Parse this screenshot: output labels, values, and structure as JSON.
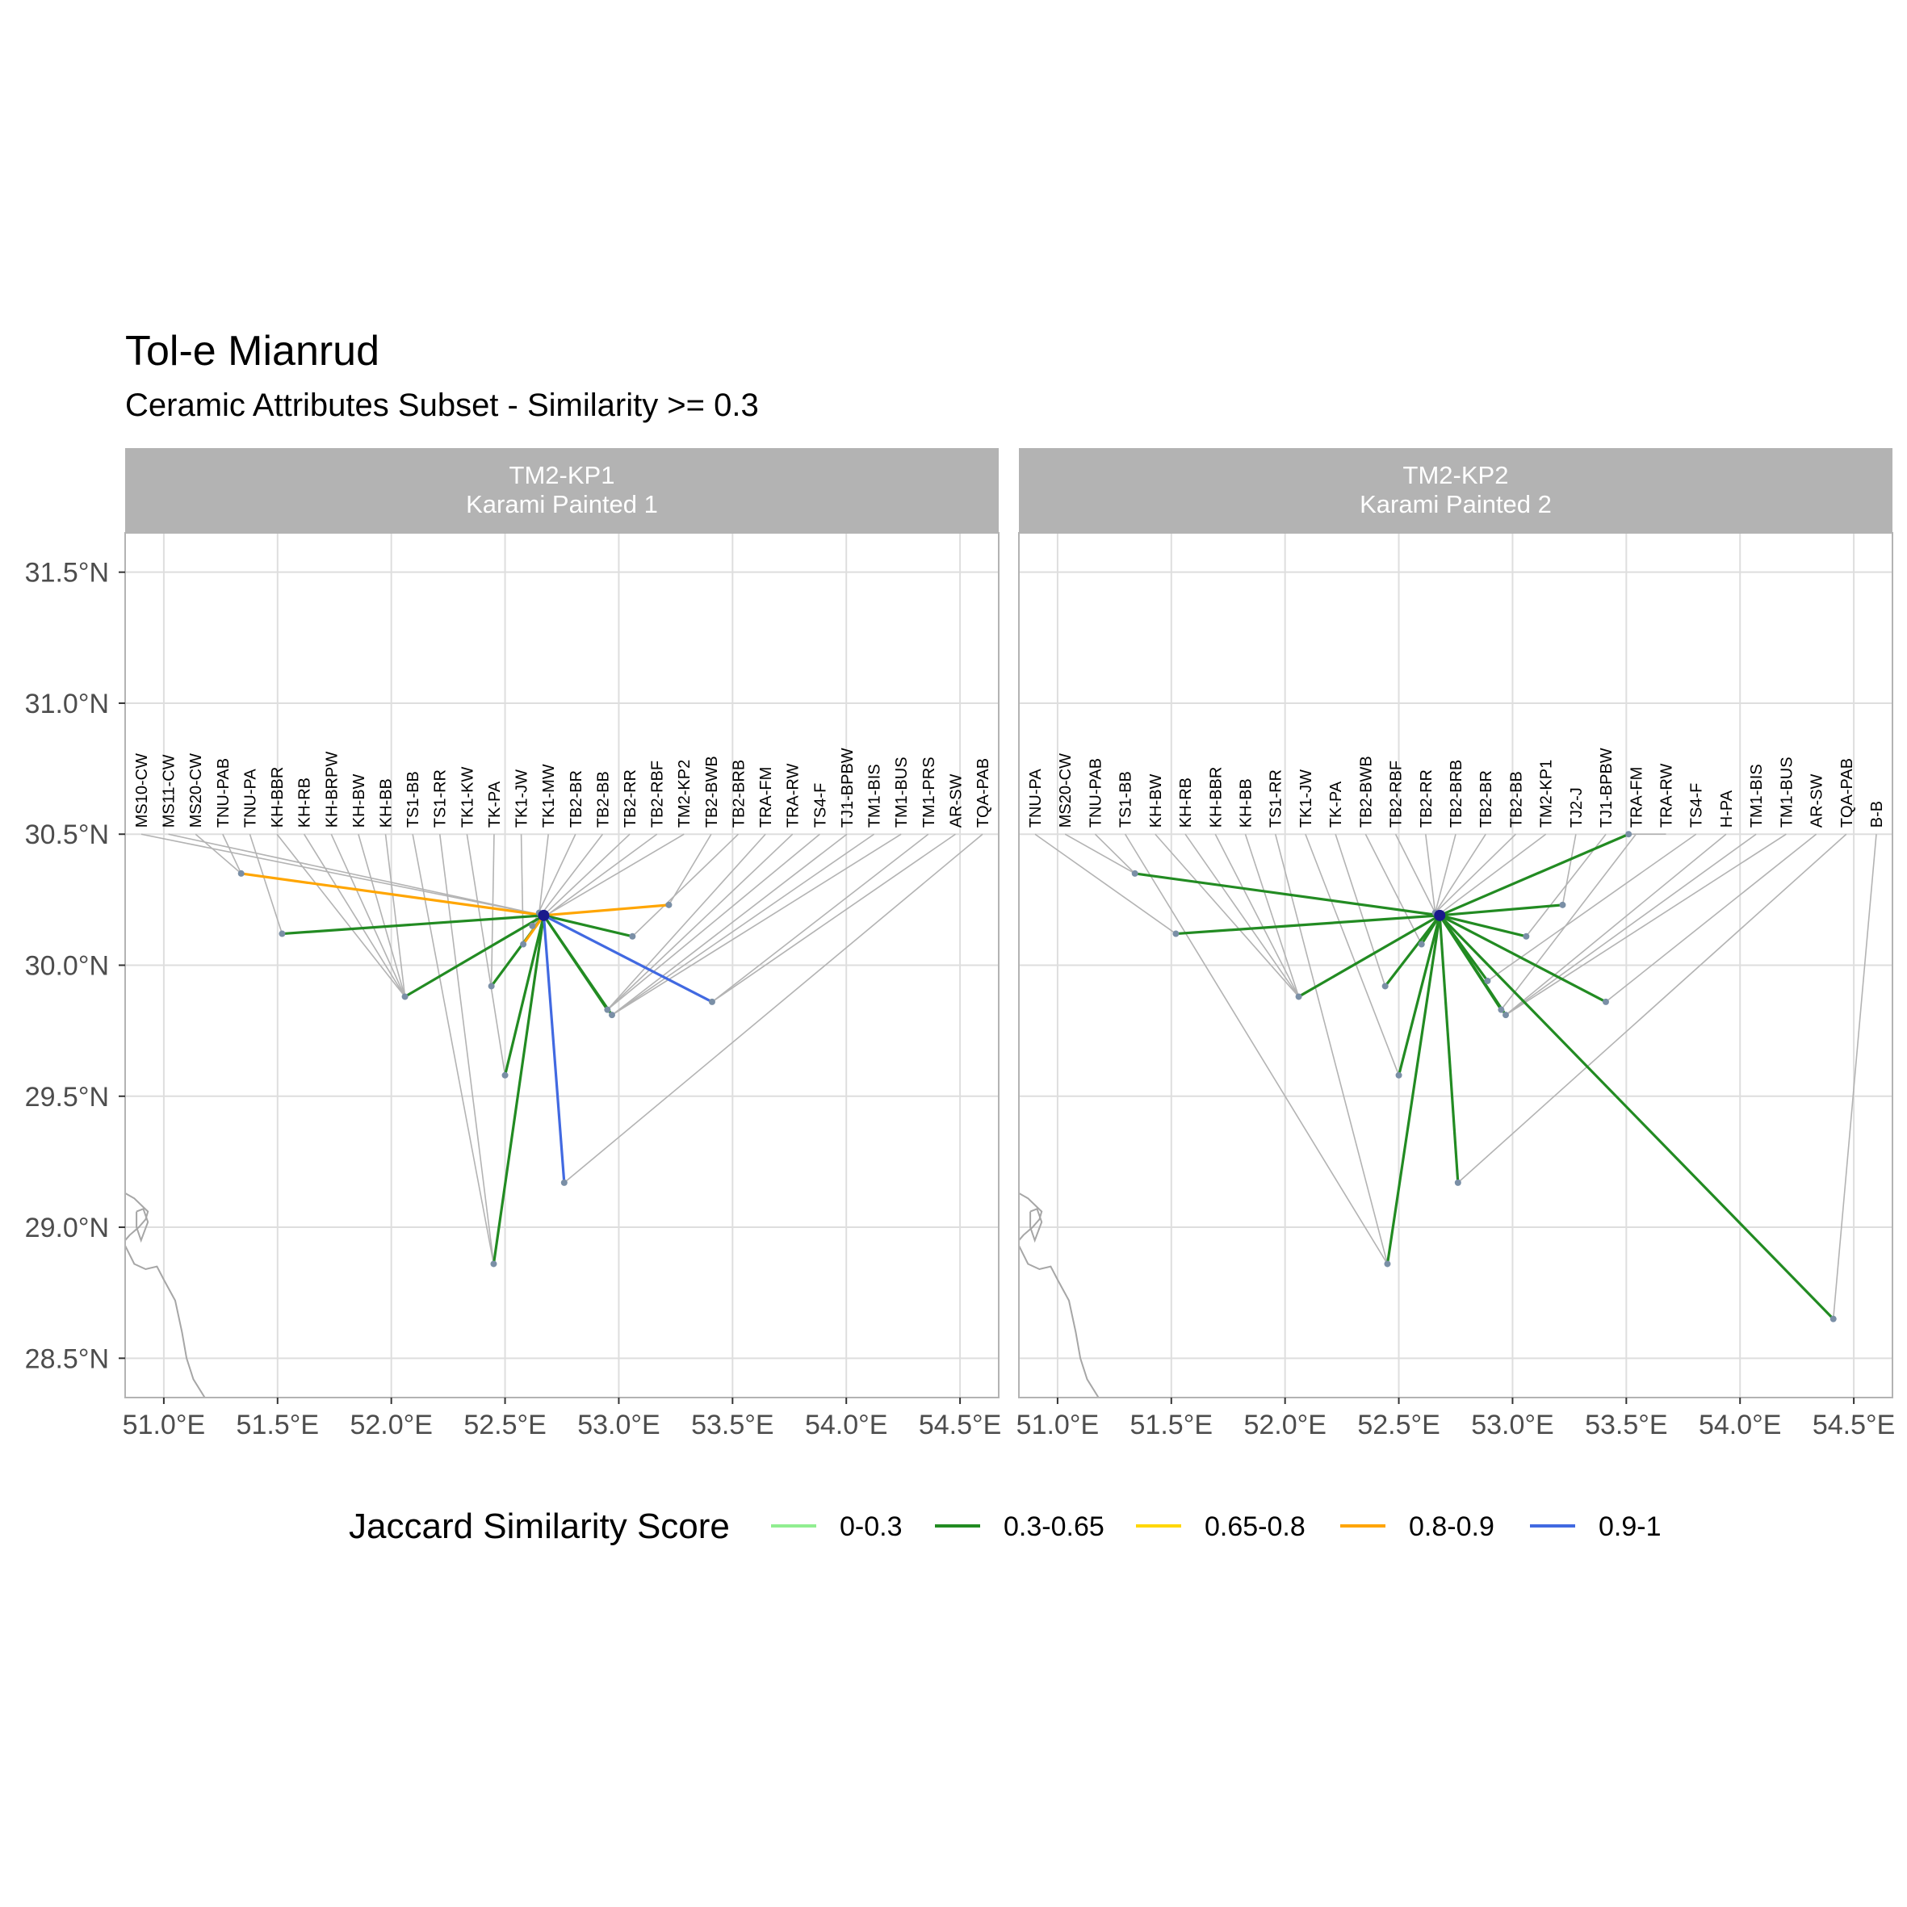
{
  "title": "Tol-e Mianrud",
  "subtitle": "Ceramic Attributes Subset - Similarity >= 0.3",
  "chart_data": {
    "type": "map-network",
    "title": "Tol-e Mianrud",
    "subtitle": "Ceramic Attributes Subset - Similarity >= 0.3",
    "xlim": [
      50.83,
      54.67
    ],
    "ylim": [
      28.35,
      31.65
    ],
    "x_ticks": [
      51.0,
      51.5,
      52.0,
      52.5,
      53.0,
      53.5,
      54.0,
      54.5
    ],
    "x_tick_labels": [
      "51.0°E",
      "51.5°E",
      "52.0°E",
      "52.5°E",
      "53.0°E",
      "53.5°E",
      "54.0°E",
      "54.5°E"
    ],
    "y_ticks": [
      28.5,
      29.0,
      29.5,
      30.0,
      30.5,
      31.0,
      31.5
    ],
    "y_tick_labels": [
      "28.5°N",
      "29.0°N",
      "29.5°N",
      "30.0°N",
      "30.5°N",
      "31.0°N",
      "31.5°N"
    ],
    "label_row_lat": 30.5,
    "grid": true,
    "legend": {
      "title": "Jaccard Similarity Score",
      "position": "bottom",
      "entries": [
        {
          "label": "0-0.3",
          "color": "#90EE90"
        },
        {
          "label": "0.3-0.65",
          "color": "#228B22"
        },
        {
          "label": "0.65-0.8",
          "color": "#FFD700"
        },
        {
          "label": "0.8-0.9",
          "color": "#FFA500"
        },
        {
          "label": "0.9-1",
          "color": "#4169E1"
        }
      ]
    },
    "colors": {
      "leader_line": "#b3b3b3",
      "strip_bg": "#b3b3b3",
      "strip_text": "#ffffff",
      "grid": "#dedede",
      "coast": "#a6a6a6",
      "focal_point": "#1a1a8c",
      "site_point": "#7a8fa6"
    },
    "coastline": [
      [
        50.83,
        29.13
      ],
      [
        50.87,
        29.11
      ],
      [
        50.93,
        29.06
      ],
      [
        50.92,
        29.03
      ],
      [
        50.89,
        29.0
      ],
      [
        50.85,
        28.97
      ],
      [
        50.83,
        28.95
      ]
    ],
    "island": [
      [
        50.88,
        29.06
      ],
      [
        50.91,
        29.07
      ],
      [
        50.93,
        29.02
      ],
      [
        50.9,
        28.95
      ],
      [
        50.88,
        29.0
      ],
      [
        50.88,
        29.06
      ]
    ],
    "coastline2": [
      [
        50.83,
        28.93
      ],
      [
        50.87,
        28.86
      ],
      [
        50.92,
        28.84
      ],
      [
        50.97,
        28.85
      ],
      [
        51.0,
        28.8
      ],
      [
        51.05,
        28.72
      ],
      [
        51.08,
        28.6
      ],
      [
        51.1,
        28.5
      ],
      [
        51.13,
        28.42
      ],
      [
        51.18,
        28.35
      ]
    ],
    "panels": [
      {
        "strip_line1": "TM2-KP1",
        "strip_line2": "Karami Painted 1",
        "focal": {
          "lon": 52.67,
          "lat": 30.19
        },
        "sites": [
          {
            "label": "MS10-CW",
            "lon": 52.67,
            "lat": 30.19
          },
          {
            "label": "MS11-CW",
            "lon": 52.67,
            "lat": 30.19
          },
          {
            "label": "MS20-CW",
            "lon": 51.34,
            "lat": 30.35
          },
          {
            "label": "TNU-PAB",
            "lon": 51.34,
            "lat": 30.35
          },
          {
            "label": "TNU-PA",
            "lon": 51.52,
            "lat": 30.12
          },
          {
            "label": "KH-BBR",
            "lon": 52.06,
            "lat": 29.88
          },
          {
            "label": "KH-RB",
            "lon": 52.06,
            "lat": 29.88
          },
          {
            "label": "KH-BRPW",
            "lon": 52.06,
            "lat": 29.88
          },
          {
            "label": "KH-BW",
            "lon": 52.06,
            "lat": 29.88
          },
          {
            "label": "KH-BB",
            "lon": 52.06,
            "lat": 29.88
          },
          {
            "label": "TS1-BB",
            "lon": 52.45,
            "lat": 28.86
          },
          {
            "label": "TS1-RR",
            "lon": 52.45,
            "lat": 28.86
          },
          {
            "label": "TK1-KW",
            "lon": 52.5,
            "lat": 29.58
          },
          {
            "label": "TK-PA",
            "lon": 52.44,
            "lat": 29.92
          },
          {
            "label": "TK1-JW",
            "lon": 52.58,
            "lat": 30.08
          },
          {
            "label": "TK1-MW",
            "lon": 52.65,
            "lat": 30.2
          },
          {
            "label": "TB2-BR",
            "lon": 52.62,
            "lat": 30.15
          },
          {
            "label": "TB2-BB",
            "lon": 52.62,
            "lat": 30.15
          },
          {
            "label": "TB2-RR",
            "lon": 52.62,
            "lat": 30.15
          },
          {
            "label": "TB2-RBF",
            "lon": 52.62,
            "lat": 30.15
          },
          {
            "label": "TM2-KP2",
            "lon": 52.68,
            "lat": 30.19
          },
          {
            "label": "TB2-BWB",
            "lon": 53.22,
            "lat": 30.23
          },
          {
            "label": "TB2-BRB",
            "lon": 53.06,
            "lat": 30.11
          },
          {
            "label": "TRA-FM",
            "lon": 52.95,
            "lat": 29.83
          },
          {
            "label": "TRA-RW",
            "lon": 52.95,
            "lat": 29.83
          },
          {
            "label": "TS4-F",
            "lon": 52.95,
            "lat": 29.83
          },
          {
            "label": "TJ1-BPBW",
            "lon": 52.97,
            "lat": 29.81
          },
          {
            "label": "TM1-BIS",
            "lon": 52.97,
            "lat": 29.81
          },
          {
            "label": "TM1-BUS",
            "lon": 52.97,
            "lat": 29.81
          },
          {
            "label": "TM1-PRS",
            "lon": 53.41,
            "lat": 29.86
          },
          {
            "label": "AR-SW",
            "lon": 53.41,
            "lat": 29.86
          },
          {
            "label": "TQA-PAB",
            "lon": 52.76,
            "lat": 29.17
          }
        ],
        "edges": [
          {
            "to": [
              51.34,
              30.35
            ],
            "bin": "0.8-0.9"
          },
          {
            "to": [
              51.52,
              30.12
            ],
            "bin": "0.3-0.65"
          },
          {
            "to": [
              52.06,
              29.88
            ],
            "bin": "0.3-0.65"
          },
          {
            "to": [
              52.45,
              28.86
            ],
            "bin": "0.3-0.65"
          },
          {
            "to": [
              52.5,
              29.58
            ],
            "bin": "0.3-0.65"
          },
          {
            "to": [
              52.44,
              29.92
            ],
            "bin": "0.3-0.65"
          },
          {
            "to": [
              52.58,
              30.08
            ],
            "bin": "0.8-0.9"
          },
          {
            "to": [
              53.22,
              30.23
            ],
            "bin": "0.8-0.9"
          },
          {
            "to": [
              53.06,
              30.11
            ],
            "bin": "0.3-0.65"
          },
          {
            "to": [
              52.95,
              29.83
            ],
            "bin": "0.3-0.65"
          },
          {
            "to": [
              52.97,
              29.81
            ],
            "bin": "0.3-0.65"
          },
          {
            "to": [
              53.41,
              29.86
            ],
            "bin": "0.9-1"
          },
          {
            "to": [
              52.76,
              29.17
            ],
            "bin": "0.9-1"
          }
        ]
      },
      {
        "strip_line1": "TM2-KP2",
        "strip_line2": "Karami Painted 2",
        "focal": {
          "lon": 52.68,
          "lat": 30.19
        },
        "sites": [
          {
            "label": "TNU-PA",
            "lon": 51.52,
            "lat": 30.12
          },
          {
            "label": "MS20-CW",
            "lon": 51.34,
            "lat": 30.35
          },
          {
            "label": "TNU-PAB",
            "lon": 51.34,
            "lat": 30.35
          },
          {
            "label": "TS1-BB",
            "lon": 52.45,
            "lat": 28.86
          },
          {
            "label": "KH-BW",
            "lon": 52.06,
            "lat": 29.88
          },
          {
            "label": "KH-RB",
            "lon": 52.06,
            "lat": 29.88
          },
          {
            "label": "KH-BBR",
            "lon": 52.06,
            "lat": 29.88
          },
          {
            "label": "KH-BB",
            "lon": 52.06,
            "lat": 29.88
          },
          {
            "label": "TS1-RR",
            "lon": 52.45,
            "lat": 28.86
          },
          {
            "label": "TK1-JW",
            "lon": 52.5,
            "lat": 29.58
          },
          {
            "label": "TK-PA",
            "lon": 52.44,
            "lat": 29.92
          },
          {
            "label": "TB2-BWB",
            "lon": 52.6,
            "lat": 30.08
          },
          {
            "label": "TB2-RBF",
            "lon": 52.66,
            "lat": 30.2
          },
          {
            "label": "TB2-RR",
            "lon": 52.66,
            "lat": 30.2
          },
          {
            "label": "TB2-BRB",
            "lon": 52.66,
            "lat": 30.2
          },
          {
            "label": "TB2-BR",
            "lon": 52.66,
            "lat": 30.2
          },
          {
            "label": "TB2-BB",
            "lon": 52.66,
            "lat": 30.2
          },
          {
            "label": "TM2-KP1",
            "lon": 52.67,
            "lat": 30.19
          },
          {
            "label": "TJ2-J",
            "lon": 53.22,
            "lat": 30.23
          },
          {
            "label": "TJ1-BPBW",
            "lon": 53.06,
            "lat": 30.11
          },
          {
            "label": "TRA-FM",
            "lon": 52.95,
            "lat": 29.83
          },
          {
            "label": "TRA-RW",
            "lon": 53.51,
            "lat": 30.5
          },
          {
            "label": "TS4-F",
            "lon": 52.89,
            "lat": 29.94
          },
          {
            "label": "H-PA",
            "lon": 52.97,
            "lat": 29.81
          },
          {
            "label": "TM1-BIS",
            "lon": 52.97,
            "lat": 29.81
          },
          {
            "label": "TM1-BUS",
            "lon": 52.97,
            "lat": 29.81
          },
          {
            "label": "AR-SW",
            "lon": 53.41,
            "lat": 29.86
          },
          {
            "label": "TQA-PAB",
            "lon": 52.76,
            "lat": 29.17
          },
          {
            "label": "B-B",
            "lon": 54.41,
            "lat": 28.65
          }
        ],
        "edges": [
          {
            "to": [
              51.34,
              30.35
            ],
            "bin": "0.3-0.65"
          },
          {
            "to": [
              51.52,
              30.12
            ],
            "bin": "0.3-0.65"
          },
          {
            "to": [
              52.06,
              29.88
            ],
            "bin": "0.3-0.65"
          },
          {
            "to": [
              52.45,
              28.86
            ],
            "bin": "0.3-0.65"
          },
          {
            "to": [
              52.5,
              29.58
            ],
            "bin": "0.3-0.65"
          },
          {
            "to": [
              52.44,
              29.92
            ],
            "bin": "0.3-0.65"
          },
          {
            "to": [
              52.6,
              30.08
            ],
            "bin": "0.3-0.65"
          },
          {
            "to": [
              53.51,
              30.5
            ],
            "bin": "0.3-0.65"
          },
          {
            "to": [
              53.22,
              30.23
            ],
            "bin": "0.3-0.65"
          },
          {
            "to": [
              53.06,
              30.11
            ],
            "bin": "0.3-0.65"
          },
          {
            "to": [
              52.95,
              29.83
            ],
            "bin": "0.3-0.65"
          },
          {
            "to": [
              52.97,
              29.81
            ],
            "bin": "0.3-0.65"
          },
          {
            "to": [
              52.89,
              29.94
            ],
            "bin": "0.3-0.65"
          },
          {
            "to": [
              53.41,
              29.86
            ],
            "bin": "0.3-0.65"
          },
          {
            "to": [
              52.76,
              29.17
            ],
            "bin": "0.3-0.65"
          },
          {
            "to": [
              54.41,
              28.65
            ],
            "bin": "0.3-0.65"
          }
        ]
      }
    ]
  }
}
